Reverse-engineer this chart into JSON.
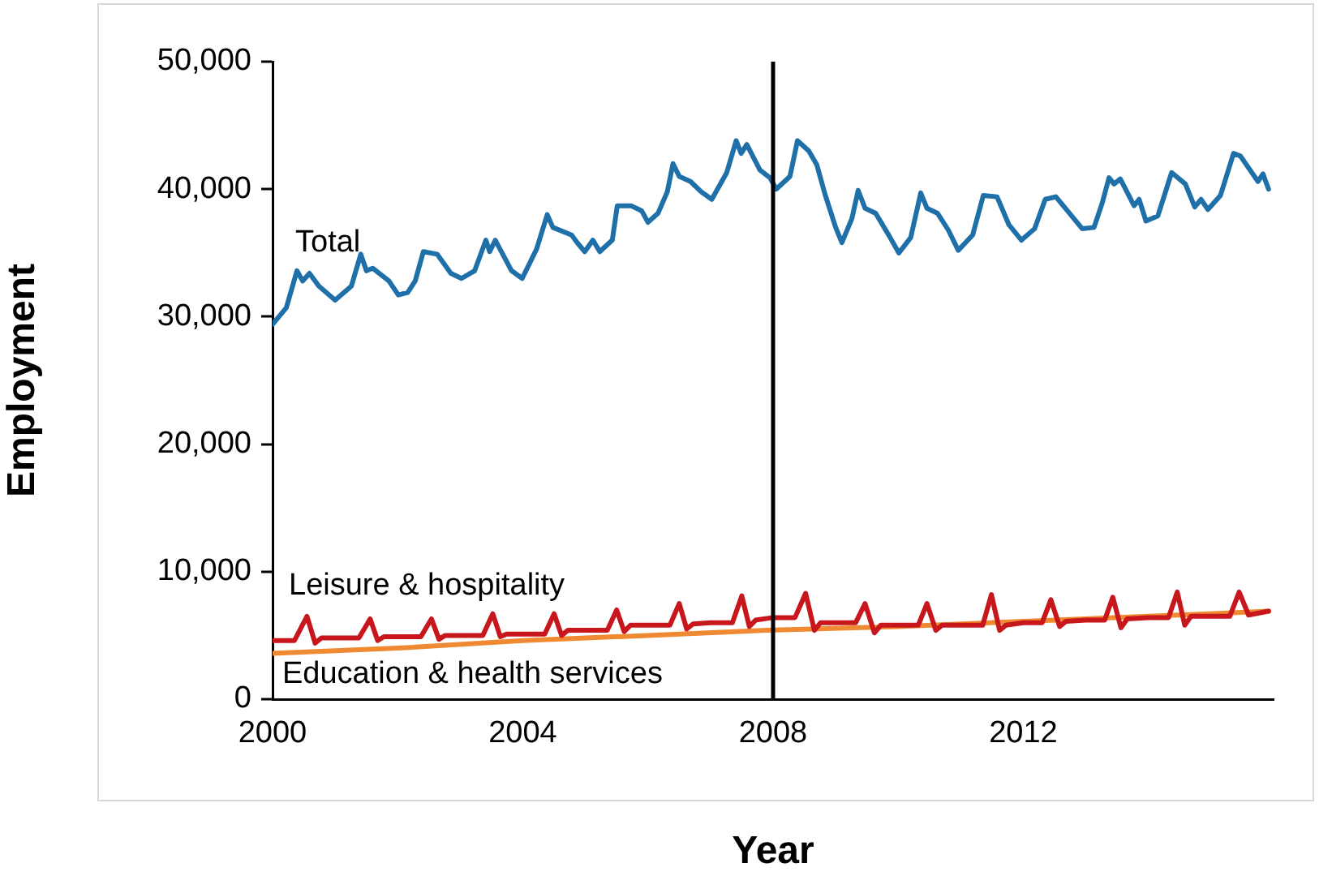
{
  "chart_data": {
    "type": "line",
    "xlabel": "Year",
    "ylabel": "Employment",
    "xlim": [
      2000,
      2016
    ],
    "xticks": [
      2000,
      2004,
      2008,
      2012
    ],
    "ylim": [
      0,
      50000
    ],
    "yticks": [
      0,
      {
        "value": 10000,
        "label": "10,000"
      },
      {
        "value": 20000,
        "label": "20,000"
      },
      {
        "value": 30000,
        "label": "30,000"
      },
      {
        "value": 40000,
        "label": "40,000"
      },
      {
        "value": 50000,
        "label": "50,000"
      }
    ],
    "grid": false,
    "legend": false,
    "marker": "none",
    "line_style": "solid",
    "ref_lines": [
      {
        "axis": "x",
        "value": 2008,
        "color": "#000000"
      }
    ],
    "series": [
      {
        "name": "Total",
        "color": "#1f6fa8",
        "x": [
          2000.0,
          2000.22,
          2000.39,
          2000.48,
          2000.59,
          2000.74,
          2001.0,
          2001.26,
          2001.41,
          2001.5,
          2001.6,
          2001.86,
          2002.01,
          2002.16,
          2002.28,
          2002.41,
          2002.63,
          2002.85,
          2003.02,
          2003.23,
          2003.41,
          2003.47,
          2003.56,
          2003.82,
          2003.99,
          2004.22,
          2004.39,
          2004.48,
          2004.78,
          2004.87,
          2004.99,
          2005.12,
          2005.23,
          2005.43,
          2005.51,
          2005.73,
          2005.9,
          2006.0,
          2006.16,
          2006.31,
          2006.4,
          2006.5,
          2006.68,
          2006.85,
          2007.02,
          2007.26,
          2007.41,
          2007.49,
          2007.58,
          2007.79,
          2007.95,
          2008.05,
          2008.27,
          2008.39,
          2008.57,
          2008.7,
          2008.83,
          2009.0,
          2009.1,
          2009.26,
          2009.36,
          2009.47,
          2009.64,
          2009.86,
          2010.01,
          2010.2,
          2010.36,
          2010.46,
          2010.63,
          2010.8,
          2010.96,
          2011.19,
          2011.36,
          2011.58,
          2011.77,
          2011.97,
          2012.18,
          2012.35,
          2012.52,
          2012.74,
          2012.94,
          2013.13,
          2013.26,
          2013.37,
          2013.45,
          2013.55,
          2013.77,
          2013.85,
          2013.96,
          2014.15,
          2014.37,
          2014.59,
          2014.74,
          2014.84,
          2014.95,
          2015.15,
          2015.36,
          2015.47,
          2015.75,
          2015.83,
          2015.92
        ],
        "values": [
          29400,
          30700,
          33600,
          32800,
          33400,
          32400,
          31300,
          32400,
          34900,
          33600,
          33800,
          32800,
          31700,
          31900,
          32800,
          35100,
          34900,
          33400,
          33000,
          33600,
          36000,
          35100,
          36000,
          33600,
          33000,
          35300,
          38000,
          37000,
          36400,
          35800,
          35100,
          36000,
          35100,
          36000,
          38700,
          38700,
          38300,
          37400,
          38100,
          39800,
          42000,
          41000,
          40600,
          39800,
          39200,
          41300,
          43800,
          42800,
          43500,
          41500,
          40900,
          40000,
          41000,
          43800,
          43000,
          41900,
          39600,
          37000,
          35800,
          37700,
          39900,
          38500,
          38100,
          36300,
          35000,
          36200,
          39700,
          38500,
          38100,
          36800,
          35200,
          36400,
          39500,
          39400,
          37200,
          36000,
          36900,
          39200,
          39400,
          38100,
          36900,
          37000,
          38900,
          40900,
          40400,
          40800,
          38700,
          39200,
          37500,
          37900,
          41300,
          40400,
          38600,
          39200,
          38400,
          39500,
          42800,
          42600,
          40600,
          41200,
          40000
        ]
      },
      {
        "name": "Leisure & hospitality",
        "color": "#c8161d",
        "x": [
          2000.0,
          2000.35,
          2000.55,
          2000.68,
          2000.78,
          2001.0,
          2001.38,
          2001.56,
          2001.68,
          2001.78,
          2002.0,
          2002.37,
          2002.54,
          2002.66,
          2002.76,
          2003.0,
          2003.36,
          2003.52,
          2003.64,
          2003.74,
          2004.0,
          2004.35,
          2004.5,
          2004.62,
          2004.72,
          2005.0,
          2005.35,
          2005.5,
          2005.62,
          2005.72,
          2006.0,
          2006.35,
          2006.5,
          2006.62,
          2006.72,
          2007.0,
          2007.35,
          2007.5,
          2007.62,
          2007.72,
          2008.0,
          2008.35,
          2008.52,
          2008.66,
          2008.76,
          2009.0,
          2009.32,
          2009.47,
          2009.62,
          2009.72,
          2010.0,
          2010.32,
          2010.46,
          2010.6,
          2010.7,
          2011.0,
          2011.35,
          2011.49,
          2011.62,
          2011.72,
          2012.0,
          2012.3,
          2012.44,
          2012.58,
          2012.68,
          2013.0,
          2013.3,
          2013.43,
          2013.56,
          2013.66,
          2014.0,
          2014.32,
          2014.46,
          2014.58,
          2014.68,
          2015.0,
          2015.3,
          2015.45,
          2015.6,
          2015.92
        ],
        "values": [
          4600,
          4600,
          6500,
          4400,
          4800,
          4800,
          4800,
          6300,
          4600,
          4900,
          4900,
          4900,
          6300,
          4700,
          5000,
          5000,
          5000,
          6700,
          4900,
          5100,
          5100,
          5100,
          6700,
          5000,
          5400,
          5400,
          5400,
          7000,
          5300,
          5800,
          5800,
          5800,
          7500,
          5500,
          5900,
          6000,
          6000,
          8100,
          5700,
          6200,
          6400,
          6400,
          8300,
          5400,
          6000,
          6000,
          6000,
          7500,
          5200,
          5800,
          5800,
          5800,
          7500,
          5400,
          5800,
          5800,
          5800,
          8200,
          5400,
          5800,
          6000,
          6000,
          7800,
          5700,
          6100,
          6200,
          6200,
          8000,
          5600,
          6300,
          6400,
          6400,
          8400,
          5800,
          6500,
          6500,
          6500,
          8400,
          6600,
          6900
        ]
      },
      {
        "name": "Education & health services",
        "color": "#f08a32",
        "x": [
          2000.0,
          2002.0,
          2004.0,
          2006.0,
          2007.9,
          2010.0,
          2012.0,
          2014.0,
          2015.92
        ],
        "values": [
          3600,
          4000,
          4600,
          5000,
          5400,
          5700,
          6100,
          6500,
          6900
        ]
      }
    ]
  }
}
